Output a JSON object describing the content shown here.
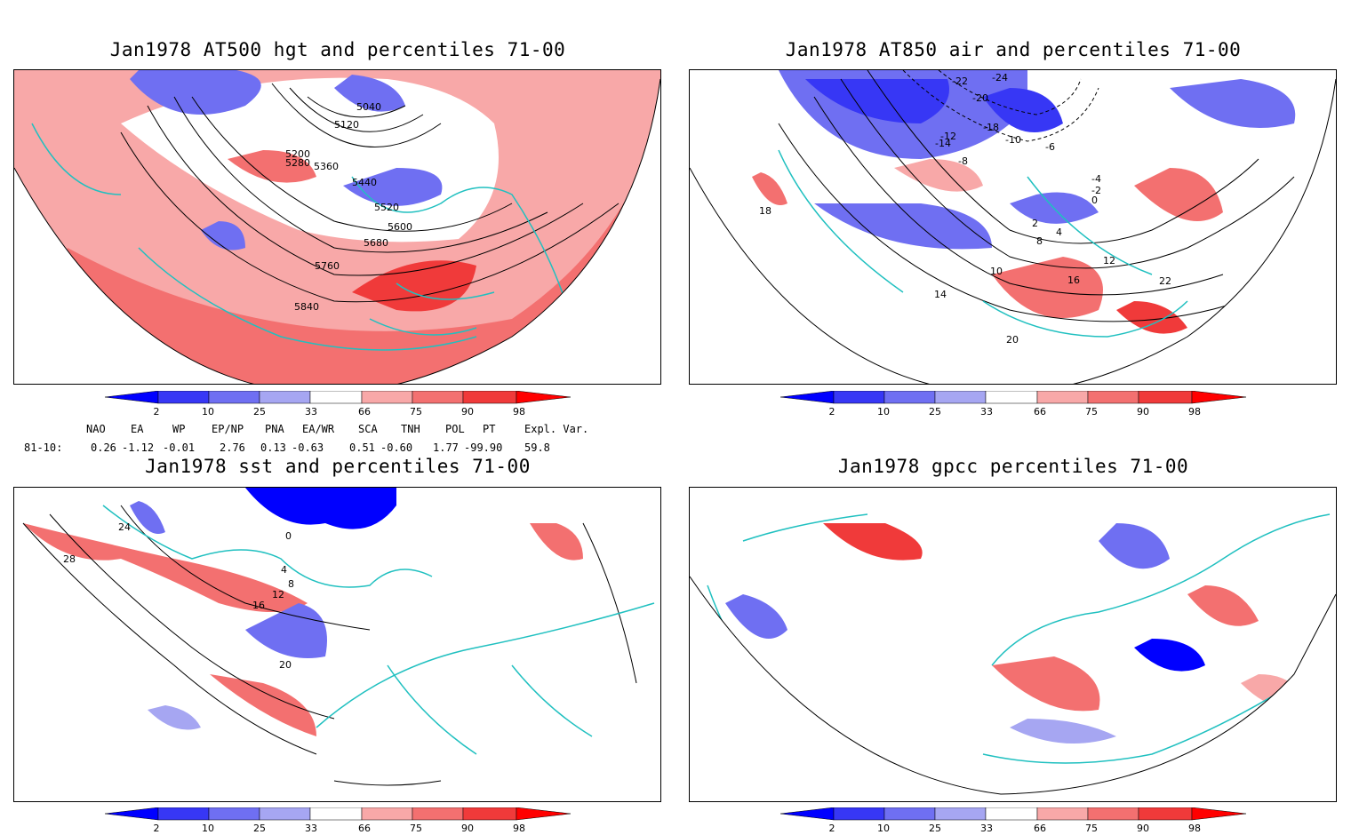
{
  "panels": [
    {
      "title": "Jan1978 AT500 hgt and percentiles 71-00",
      "contour_labels": [
        "5040",
        "5120",
        "5200",
        "5280",
        "5360",
        "5440",
        "5520",
        "5600",
        "5680",
        "5760",
        "5840"
      ]
    },
    {
      "title": "Jan1978 AT850 air and percentiles 71-00",
      "contour_labels": [
        "-24",
        "-22",
        "-20",
        "-18",
        "-14",
        "-12",
        "-10",
        "-8",
        "-6",
        "-4",
        "-2",
        "0",
        "2",
        "4",
        "8",
        "10",
        "12",
        "14",
        "16",
        "18",
        "20",
        "22"
      ]
    },
    {
      "title": "Jan1978 sst and percentiles 71-00",
      "contour_labels": [
        "28",
        "24",
        "20",
        "16",
        "12",
        "8",
        "4",
        "0"
      ]
    },
    {
      "title": "Jan1978 gpcc percentiles 71-00",
      "contour_labels": []
    }
  ],
  "colorbar": {
    "labels": [
      "2",
      "10",
      "25",
      "33",
      "66",
      "75",
      "90",
      "98"
    ],
    "colors": {
      "blue_dark": "#0000ff",
      "blue_2": "#3737f5",
      "blue_3": "#6f6ff2",
      "blue_4": "#a6a6f2",
      "red_4": "#f8a8a8",
      "red_3": "#f37070",
      "red_2": "#f03a3a",
      "red_dark": "#ff0000"
    }
  },
  "indices": {
    "header": [
      "NAO",
      "EA",
      "WP",
      "EP/NP",
      "PNA",
      "EA/WR",
      "SCA",
      "TNH",
      "POL",
      "PT",
      "Expl. Var."
    ],
    "row_label": "81-10:",
    "values": [
      "0.26",
      "-1.12",
      "-0.01",
      "2.76",
      "0.13",
      "-0.63",
      "0.51",
      "-0.60",
      "1.77",
      "-99.90",
      "59.8"
    ]
  },
  "map_colors": {
    "coast": "#20c0c0",
    "contour": "#000000",
    "grid": "#888888"
  }
}
